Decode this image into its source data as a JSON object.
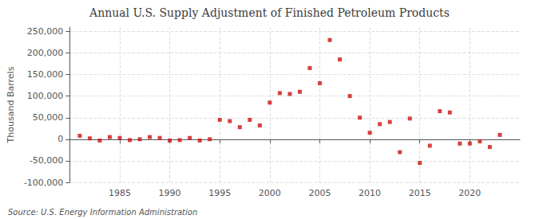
{
  "chart_data": {
    "type": "scatter",
    "title": "Annual U.S. Supply Adjustment of Finished Petroleum Products",
    "ylabel": "Thousand Barrels",
    "annotations": [
      "Source: U.S. Energy Information Administration"
    ],
    "x": [
      1981,
      1982,
      1983,
      1984,
      1985,
      1986,
      1987,
      1988,
      1989,
      1990,
      1991,
      1992,
      1993,
      1994,
      1995,
      1996,
      1997,
      1998,
      1999,
      2000,
      2001,
      2002,
      2003,
      2004,
      2005,
      2006,
      2007,
      2008,
      2009,
      2010,
      2011,
      2012,
      2013,
      2014,
      2015,
      2016,
      2017,
      2018,
      2019,
      2020,
      2021,
      2022,
      2023
    ],
    "values": [
      8000,
      2000,
      -3000,
      5000,
      3000,
      -2000,
      0,
      5000,
      3000,
      -3000,
      -2000,
      3000,
      -3000,
      0,
      45000,
      42000,
      28000,
      45000,
      32000,
      85000,
      107000,
      105000,
      110000,
      165000,
      130000,
      230000,
      185000,
      100000,
      50000,
      15000,
      35000,
      40000,
      -30000,
      48000,
      -55000,
      -15000,
      65000,
      62000,
      -10000,
      -10000,
      -5000,
      -18000,
      10000
    ],
    "color": "#cc1111",
    "marker": "square",
    "xlim": [
      1980,
      2025
    ],
    "xticks": [
      1985,
      1990,
      1995,
      2000,
      2005,
      2010,
      2015,
      2020
    ],
    "ylim": [
      -100000,
      260000
    ],
    "yticks": [
      {
        "value": -100000,
        "label": "-100,000"
      },
      {
        "value": -50000,
        "label": "-50,000"
      },
      0,
      {
        "value": 50000,
        "label": "50,000"
      },
      {
        "value": 100000,
        "label": "100,000"
      },
      {
        "value": 150000,
        "label": "150,000"
      },
      {
        "value": 200000,
        "label": "200,000"
      },
      {
        "value": 250000,
        "label": "250,000"
      }
    ],
    "grid": true
  }
}
